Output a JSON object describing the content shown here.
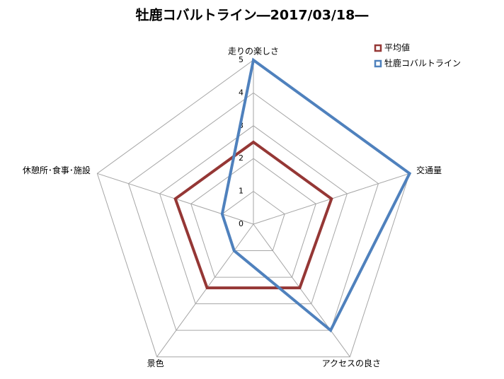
{
  "chart_data": {
    "type": "radar",
    "title": "牡鹿コバルトライン―2017/03/18―",
    "categories": [
      "走りの楽しさ",
      "交通量",
      "アクセスの良さ",
      "景色",
      "休憩所･食事･施設"
    ],
    "series": [
      {
        "name": "平均値",
        "color": "#953735",
        "values": [
          2.5,
          2.5,
          2.4,
          2.4,
          2.5
        ]
      },
      {
        "name": "牡鹿コバルトライン",
        "color": "#4f81bd",
        "values": [
          5,
          5,
          4,
          1,
          1
        ]
      }
    ],
    "ylim": [
      0,
      5
    ],
    "yticks": [
      0,
      1,
      2,
      3,
      4,
      5
    ],
    "grid": true,
    "legend": "top-right"
  }
}
